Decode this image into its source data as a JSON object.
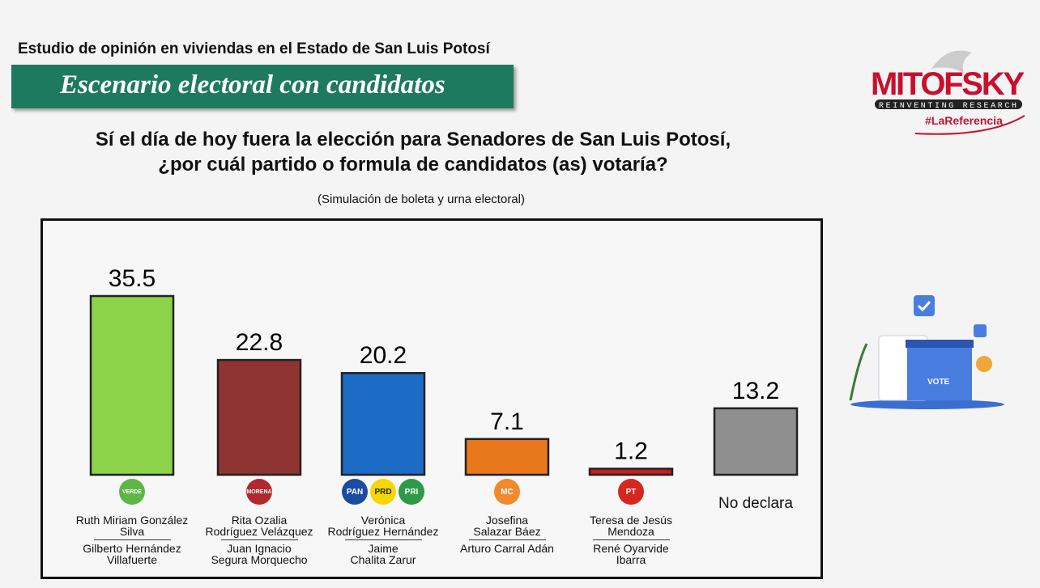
{
  "header": {
    "study": "Estudio de opinión en viviendas en el Estado de San Luis Potosí",
    "banner": "Escenario electoral con candidatos",
    "question_line1": "Sí el día de hoy fuera la elección para Senadores de San Luis Potosí,",
    "question_line2": "¿por cuál partido o formula de candidatos (as) votaría?",
    "note": "(Simulación de boleta y urna electoral)"
  },
  "logo": {
    "brand": "MITOFSKY",
    "tagline": "REINVENTING RESEARCH",
    "hashtag": "#LaReferencia",
    "color": "#c8102e"
  },
  "illustration": {
    "text": "VOTE"
  },
  "chart_data": {
    "type": "bar",
    "ylim": [
      0,
      40
    ],
    "grid": false,
    "categories": [
      "PVEM",
      "MORENA",
      "PAN-PRI-PRD",
      "MC",
      "PT",
      "No declara"
    ],
    "values": [
      35.5,
      22.8,
      20.2,
      7.1,
      1.2,
      13.2
    ],
    "colors": [
      "#8cd34a",
      "#8e3433",
      "#1c6bc4",
      "#e9781c",
      "#c71c1c",
      "#8f8f8f"
    ],
    "parties": [
      {
        "logos": [
          {
            "text": "VERDE",
            "color": "#5db646"
          }
        ],
        "cand1": [
          "Ruth Miriam González",
          "Silva"
        ],
        "cand2": [
          "Gilberto Hernández",
          "Villafuerte"
        ]
      },
      {
        "logos": [
          {
            "text": "MORENA",
            "color": "#b3282d"
          }
        ],
        "cand1": [
          "Rita Ozalia",
          "Rodríguez Velázquez"
        ],
        "cand2": [
          "Juan Ignacio",
          "Segura Morquecho"
        ]
      },
      {
        "logos": [
          {
            "text": "PAN",
            "color": "#1a4da1"
          },
          {
            "text": "PRD",
            "color": "#f5d800"
          },
          {
            "text": "PRI",
            "color": "#2e9a47"
          }
        ],
        "cand1": [
          "Verónica",
          "Rodríguez Hernández"
        ],
        "cand2": [
          "Jaime",
          "Chalita Zarur"
        ]
      },
      {
        "logos": [
          {
            "text": "MC",
            "color": "#f18a2c"
          }
        ],
        "cand1": [
          "Josefina",
          "Salazar Báez"
        ],
        "cand2": [
          "Arturo Carral Adán"
        ]
      },
      {
        "logos": [
          {
            "text": "PT",
            "color": "#d7261e"
          }
        ],
        "cand1": [
          "Teresa de Jesús",
          "Mendoza"
        ],
        "cand2": [
          "René Oyarvide",
          "Ibarra"
        ]
      },
      {
        "logos": [],
        "cand1": [
          "No declara"
        ],
        "cand2": []
      }
    ]
  }
}
